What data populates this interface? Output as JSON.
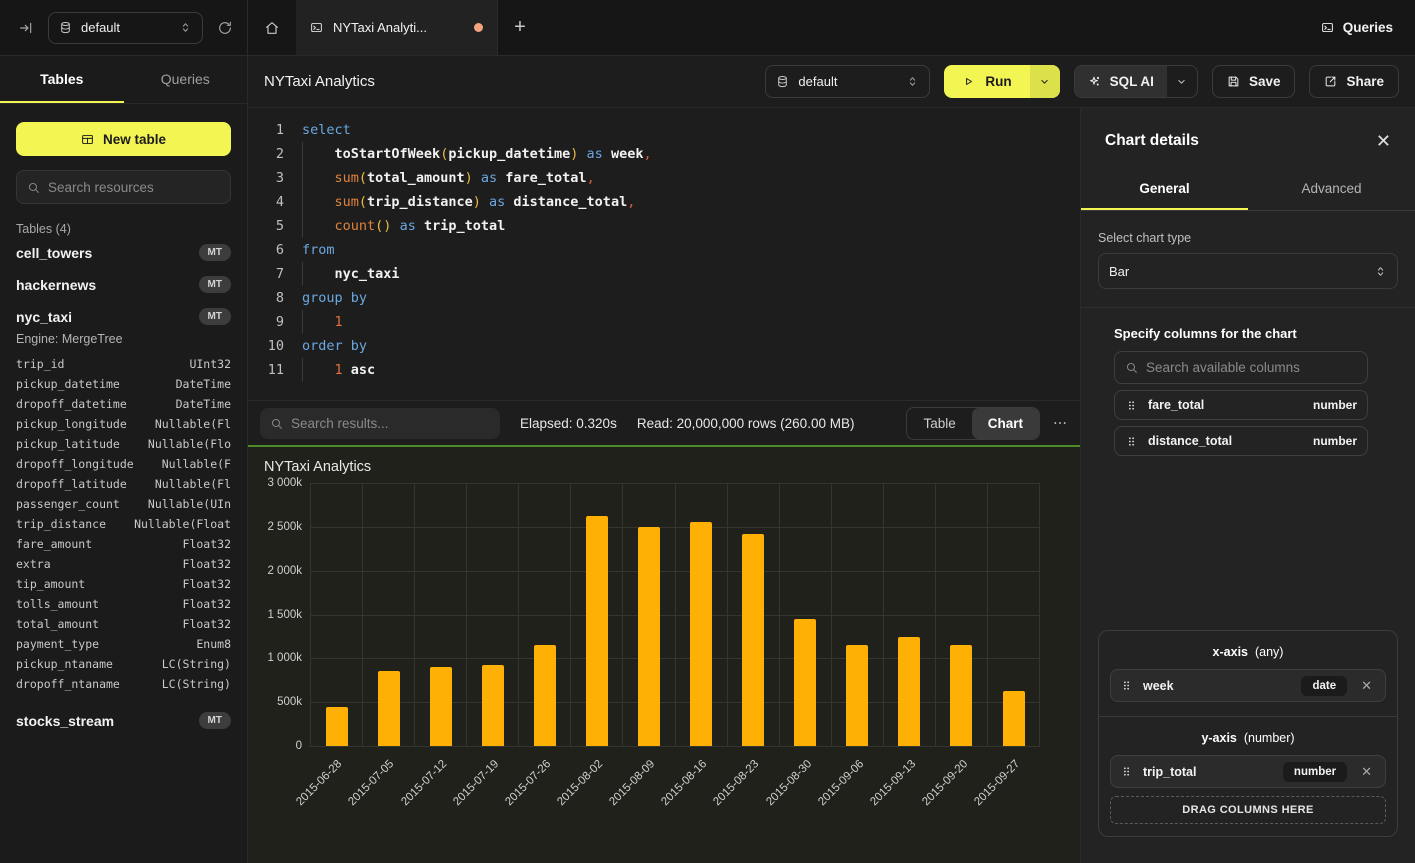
{
  "colors": {
    "accent_yellow": "#f2f552",
    "run_chevron_segment": "#dce04b",
    "bar_fill": "#ffb005",
    "chart_top_border_green": "#4c8a28",
    "tab_unsaved_dot": "#f2a47e"
  },
  "icons": {
    "collapse-sidebar": "arrow-to-bar",
    "database": "cylinder",
    "refresh": "circular-arrow",
    "home": "house",
    "terminal": "console-window",
    "plus": "+",
    "play": "triangle-outline",
    "chevron-down": "v",
    "updown": "double-chevron",
    "sparkle": "four-point-star",
    "save": "floppy",
    "share": "external-link",
    "search": "magnifier",
    "drag-handle": "six-dots",
    "more": "ellipsis",
    "close": "x"
  },
  "topbar": {
    "database_selector": {
      "value": "default"
    },
    "active_tab": {
      "title": "NYTaxi Analyti...",
      "unsaved": true
    },
    "queries_label": "Queries"
  },
  "sidebar": {
    "tabs": [
      {
        "label": "Tables",
        "active": true
      },
      {
        "label": "Queries",
        "active": false
      }
    ],
    "new_table_label": "New table",
    "search_placeholder": "Search resources",
    "section_label": "Tables (4)",
    "tables": [
      {
        "name": "cell_towers",
        "badge": "MT"
      },
      {
        "name": "hackernews",
        "badge": "MT"
      },
      {
        "name": "nyc_taxi",
        "badge": "MT",
        "engine": "Engine: MergeTree",
        "columns": [
          {
            "name": "trip_id",
            "type": "UInt32"
          },
          {
            "name": "pickup_datetime",
            "type": "DateTime"
          },
          {
            "name": "dropoff_datetime",
            "type": "DateTime"
          },
          {
            "name": "pickup_longitude",
            "type": "Nullable(Fl"
          },
          {
            "name": "pickup_latitude",
            "type": "Nullable(Flo"
          },
          {
            "name": "dropoff_longitude",
            "type": "Nullable(F"
          },
          {
            "name": "dropoff_latitude",
            "type": "Nullable(Fl"
          },
          {
            "name": "passenger_count",
            "type": "Nullable(UIn"
          },
          {
            "name": "trip_distance",
            "type": "Nullable(Float"
          },
          {
            "name": "fare_amount",
            "type": "Float32"
          },
          {
            "name": "extra",
            "type": "Float32"
          },
          {
            "name": "tip_amount",
            "type": "Float32"
          },
          {
            "name": "tolls_amount",
            "type": "Float32"
          },
          {
            "name": "total_amount",
            "type": "Float32"
          },
          {
            "name": "payment_type",
            "type": "Enum8"
          },
          {
            "name": "pickup_ntaname",
            "type": "LC(String)"
          },
          {
            "name": "dropoff_ntaname",
            "type": "LC(String)"
          }
        ]
      },
      {
        "name": "stocks_stream",
        "badge": "MT"
      }
    ]
  },
  "header": {
    "title": "NYTaxi Analytics",
    "database_selector": {
      "value": "default"
    },
    "run_label": "Run",
    "sql_ai_label": "SQL AI",
    "save_label": "Save",
    "share_label": "Share"
  },
  "editor": {
    "lines": [
      {
        "n": 1,
        "g": 0,
        "tokens": [
          {
            "t": "select",
            "c": "kw"
          }
        ]
      },
      {
        "n": 2,
        "g": 1,
        "tokens": [
          {
            "t": "    ",
            "c": "pl"
          },
          {
            "t": "toStartOfWeek",
            "c": "id"
          },
          {
            "t": "(",
            "c": "par"
          },
          {
            "t": "pickup_datetime",
            "c": "id"
          },
          {
            "t": ")",
            "c": "par"
          },
          {
            "t": " ",
            "c": "pl"
          },
          {
            "t": "as",
            "c": "kw"
          },
          {
            "t": " ",
            "c": "pl"
          },
          {
            "t": "week",
            "c": "id"
          },
          {
            "t": ",",
            "c": "pun"
          }
        ]
      },
      {
        "n": 3,
        "g": 1,
        "tokens": [
          {
            "t": "    ",
            "c": "pl"
          },
          {
            "t": "sum",
            "c": "fn"
          },
          {
            "t": "(",
            "c": "par"
          },
          {
            "t": "total_amount",
            "c": "id"
          },
          {
            "t": ")",
            "c": "par"
          },
          {
            "t": " ",
            "c": "pl"
          },
          {
            "t": "as",
            "c": "kw"
          },
          {
            "t": " ",
            "c": "pl"
          },
          {
            "t": "fare_total",
            "c": "id"
          },
          {
            "t": ",",
            "c": "pun"
          }
        ]
      },
      {
        "n": 4,
        "g": 1,
        "tokens": [
          {
            "t": "    ",
            "c": "pl"
          },
          {
            "t": "sum",
            "c": "fn"
          },
          {
            "t": "(",
            "c": "par"
          },
          {
            "t": "trip_distance",
            "c": "id"
          },
          {
            "t": ")",
            "c": "par"
          },
          {
            "t": " ",
            "c": "pl"
          },
          {
            "t": "as",
            "c": "kw"
          },
          {
            "t": " ",
            "c": "pl"
          },
          {
            "t": "distance_total",
            "c": "id"
          },
          {
            "t": ",",
            "c": "pun"
          }
        ]
      },
      {
        "n": 5,
        "g": 1,
        "tokens": [
          {
            "t": "    ",
            "c": "pl"
          },
          {
            "t": "count",
            "c": "fn"
          },
          {
            "t": "(",
            "c": "par"
          },
          {
            "t": ")",
            "c": "par"
          },
          {
            "t": " ",
            "c": "pl"
          },
          {
            "t": "as",
            "c": "kw"
          },
          {
            "t": " ",
            "c": "pl"
          },
          {
            "t": "trip_total",
            "c": "id"
          }
        ]
      },
      {
        "n": 6,
        "g": 0,
        "tokens": [
          {
            "t": "from",
            "c": "kw"
          }
        ]
      },
      {
        "n": 7,
        "g": 1,
        "tokens": [
          {
            "t": "    ",
            "c": "pl"
          },
          {
            "t": "nyc_taxi",
            "c": "id"
          }
        ]
      },
      {
        "n": 8,
        "g": 0,
        "tokens": [
          {
            "t": "group by",
            "c": "kw"
          }
        ]
      },
      {
        "n": 9,
        "g": 1,
        "tokens": [
          {
            "t": "    ",
            "c": "pl"
          },
          {
            "t": "1",
            "c": "num"
          }
        ]
      },
      {
        "n": 10,
        "g": 0,
        "tokens": [
          {
            "t": "order by",
            "c": "kw"
          }
        ]
      },
      {
        "n": 11,
        "g": 1,
        "tokens": [
          {
            "t": "    ",
            "c": "pl"
          },
          {
            "t": "1",
            "c": "num"
          },
          {
            "t": " ",
            "c": "pl"
          },
          {
            "t": "asc",
            "c": "id"
          }
        ]
      }
    ]
  },
  "results": {
    "search_placeholder": "Search results...",
    "elapsed": "Elapsed: 0.320s",
    "read": "Read: 20,000,000 rows (260.00 MB)",
    "view_toggle": [
      {
        "label": "Table",
        "active": false
      },
      {
        "label": "Chart",
        "active": true
      }
    ]
  },
  "chart_data": {
    "type": "bar",
    "title": "NYTaxi Analytics",
    "series_name": "trip_total",
    "categories": [
      "2015-06-28",
      "2015-07-05",
      "2015-07-12",
      "2015-07-19",
      "2015-07-26",
      "2015-08-02",
      "2015-08-09",
      "2015-08-16",
      "2015-08-23",
      "2015-08-30",
      "2015-09-06",
      "2015-09-13",
      "2015-09-20",
      "2015-09-27"
    ],
    "values": [
      450000,
      860000,
      900000,
      925000,
      1150000,
      2620000,
      2500000,
      2550000,
      2420000,
      1450000,
      1150000,
      1240000,
      1150000,
      630000
    ],
    "xlabel": "week",
    "ylabel": "trip_total",
    "ylim": [
      0,
      3000000
    ],
    "yticks": [
      "3 000k",
      "2 500k",
      "2 000k",
      "1 500k",
      "1 000k",
      "500k",
      "0"
    ],
    "grid": true,
    "legend": false,
    "bar_color": "#ffb005"
  },
  "panel": {
    "title": "Chart details",
    "tabs": [
      {
        "label": "General",
        "active": true
      },
      {
        "label": "Advanced",
        "active": false
      }
    ],
    "chart_type_label": "Select chart type",
    "chart_type_value": "Bar",
    "columns_label": "Specify columns for the chart",
    "search_placeholder": "Search available columns",
    "available_columns": [
      {
        "name": "fare_total",
        "type": "number"
      },
      {
        "name": "distance_total",
        "type": "number"
      }
    ],
    "x_axis": {
      "label": "x-axis",
      "hint": "(any)",
      "items": [
        {
          "name": "week",
          "type": "date"
        }
      ]
    },
    "y_axis": {
      "label": "y-axis",
      "hint": "(number)",
      "items": [
        {
          "name": "trip_total",
          "type": "number"
        }
      ]
    },
    "drop_label": "DRAG COLUMNS HERE"
  }
}
